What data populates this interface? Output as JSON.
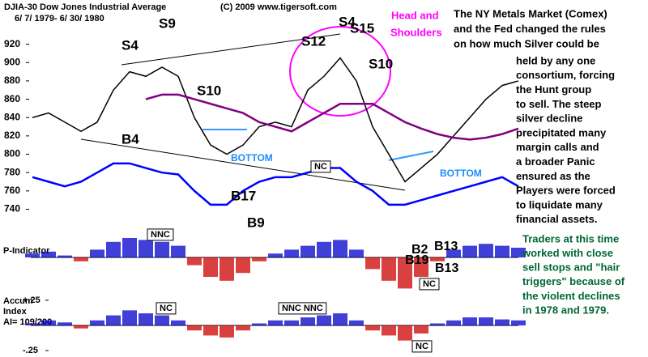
{
  "chart_data": [
    {
      "type": "line",
      "title": "DJIA-30  Dow Jones Industrial Average",
      "subtitle": "6/ 7/ 1979- 6/ 30/ 1980",
      "copyright": "(C) 2009 www.tigersoft.com",
      "categories": [
        null,
        null,
        null,
        null,
        null,
        null,
        null,
        null,
        null,
        null,
        null,
        null,
        null,
        null,
        null,
        null,
        null,
        null,
        null,
        null,
        null,
        null,
        null,
        null,
        null,
        null,
        null,
        null,
        null,
        null,
        null
      ],
      "series": [
        {
          "color": "#000000",
          "values": [
            840,
            845,
            835,
            825,
            835,
            870,
            890,
            885,
            895,
            885,
            840,
            810,
            800,
            810,
            830,
            835,
            830,
            870,
            885,
            905,
            880,
            830,
            800,
            770,
            785,
            800,
            820,
            840,
            860,
            875,
            880
          ]
        },
        {
          "color": "#0000ff",
          "values": [
            775,
            770,
            765,
            770,
            780,
            790,
            790,
            785,
            780,
            778,
            760,
            745,
            745,
            760,
            770,
            775,
            775,
            780,
            785,
            785,
            770,
            760,
            745,
            745,
            750,
            755,
            760,
            765,
            770,
            775,
            765
          ]
        },
        {
          "color": "#800080",
          "values": [
            null,
            null,
            null,
            null,
            null,
            null,
            null,
            860,
            865,
            865,
            860,
            855,
            850,
            845,
            835,
            830,
            825,
            835,
            845,
            855,
            855,
            855,
            845,
            835,
            828,
            822,
            818,
            816,
            818,
            822,
            828
          ]
        }
      ],
      "ylim": [
        721,
        955
      ],
      "yticks": [
        740,
        760,
        780,
        800,
        820,
        840,
        860,
        880,
        900,
        920
      ],
      "annotations": [
        "S9",
        "S4",
        "S10",
        "B4",
        "BOTTOM",
        "NC",
        "B17",
        "B9",
        "S4",
        "S12",
        "S15",
        "S10",
        "BOTTOM",
        "Head and",
        "Shoulders"
      ]
    },
    {
      "type": "bar",
      "title": "P-Indicator",
      "categories": [
        null,
        null,
        null,
        null,
        null,
        null,
        null,
        null,
        null,
        null,
        null,
        null,
        null,
        null,
        null,
        null,
        null,
        null,
        null,
        null,
        null,
        null,
        null,
        null,
        null,
        null,
        null,
        null,
        null,
        null,
        null
      ],
      "values": [
        10,
        15,
        5,
        -10,
        20,
        40,
        50,
        45,
        40,
        30,
        -20,
        -50,
        -60,
        -40,
        -10,
        10,
        20,
        30,
        40,
        45,
        20,
        -30,
        -60,
        -80,
        -50,
        -10,
        20,
        30,
        35,
        30,
        25
      ],
      "color": "#0000cc",
      "negative_color": "#cc0000",
      "ylim": [
        -100,
        100
      ],
      "annotations": [
        "NNC",
        "NC",
        "B2",
        "B13",
        "B19",
        "B13"
      ]
    },
    {
      "type": "bar",
      "labels": [
        "Accum",
        "Index",
        "AI= 109/200"
      ],
      "categories": [
        null,
        null,
        null,
        null,
        null,
        null,
        null,
        null,
        null,
        null,
        null,
        null,
        null,
        null,
        null,
        null,
        null,
        null,
        null,
        null,
        null,
        null,
        null,
        null,
        null,
        null,
        null,
        null,
        null,
        null,
        null
      ],
      "values": [
        0.02,
        0.05,
        0.03,
        -0.03,
        0.05,
        0.1,
        0.15,
        0.12,
        0.1,
        0.05,
        -0.05,
        -0.1,
        -0.12,
        -0.05,
        0.02,
        0.05,
        0.05,
        0.08,
        0.1,
        0.12,
        0.05,
        -0.05,
        -0.1,
        -0.15,
        -0.08,
        0.02,
        0.05,
        0.08,
        0.08,
        0.06,
        0.05
      ],
      "color": "#0000cc",
      "negative_color": "#cc0000",
      "ylim": [
        -0.3,
        0.3
      ],
      "yticks": [
        {
          "value": 0.25,
          "label": "+.25"
        },
        {
          "value": -0.25,
          "label": "-.25"
        }
      ],
      "annotations": [
        "NC",
        "NNC  NNC",
        "NC"
      ]
    }
  ],
  "text_blocks": {
    "black": [
      "The NY Metals Market (Comex)",
      "and the Fed changed the rules",
      "on how much Silver could be",
      "held by any one",
      "consortium, forcing",
      "the Hunt group",
      "to sell.  The steep",
      "silver decline",
      "precipitated many",
      "margin calls and",
      "a broader Panic",
      "ensured as the",
      "Players were forced",
      "to liquidate many",
      "financial assets."
    ],
    "green": [
      "Traders at this time",
      "worked with close",
      "sell stops and \"hair",
      "triggers\" because of",
      "the violent declines",
      "in 1978 and 1979."
    ]
  }
}
